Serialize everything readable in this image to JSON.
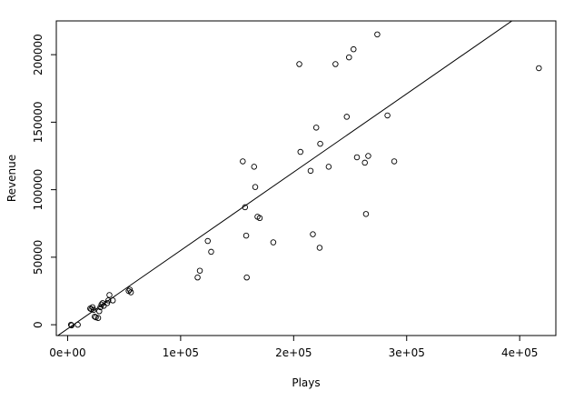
{
  "chart_data": {
    "type": "scatter",
    "title": "",
    "xlabel": "Plays",
    "ylabel": "Revenue",
    "xlim": [
      -10000,
      432000
    ],
    "ylim": [
      -8000,
      225000
    ],
    "x_ticks": [
      0,
      100000,
      200000,
      300000,
      400000
    ],
    "x_tick_labels": [
      "0e+00",
      "1e+05",
      "2e+05",
      "3e+05",
      "4e+05"
    ],
    "y_ticks": [
      0,
      50000,
      100000,
      150000,
      200000
    ],
    "y_tick_labels": [
      "0",
      "50000",
      "100000",
      "150000",
      "200000"
    ],
    "grid": false,
    "colors": {
      "points": "#000000",
      "line": "#000000",
      "background": "#ffffff"
    },
    "regression_line": {
      "slope": 0.58,
      "intercept": -3000
    },
    "points": [
      [
        3000,
        0
      ],
      [
        3500,
        -500
      ],
      [
        9000,
        0
      ],
      [
        20000,
        12000
      ],
      [
        21000,
        11500
      ],
      [
        22000,
        13000
      ],
      [
        23000,
        11000
      ],
      [
        24000,
        6000
      ],
      [
        25000,
        5500
      ],
      [
        27000,
        5000
      ],
      [
        28000,
        10000
      ],
      [
        29000,
        13000
      ],
      [
        30000,
        15000
      ],
      [
        31000,
        16000
      ],
      [
        32000,
        14000
      ],
      [
        35000,
        16000
      ],
      [
        36000,
        18000
      ],
      [
        37000,
        22000
      ],
      [
        40000,
        18000
      ],
      [
        54000,
        25000
      ],
      [
        55000,
        26000
      ],
      [
        56000,
        24000
      ],
      [
        115000,
        35000
      ],
      [
        117000,
        40000
      ],
      [
        124000,
        62000
      ],
      [
        127000,
        54000
      ],
      [
        155000,
        121000
      ],
      [
        157000,
        87000
      ],
      [
        158000,
        66000
      ],
      [
        158500,
        35000
      ],
      [
        165000,
        117000
      ],
      [
        166000,
        102000
      ],
      [
        168000,
        80000
      ],
      [
        170000,
        79000
      ],
      [
        182000,
        61000
      ],
      [
        205000,
        193000
      ],
      [
        206000,
        128000
      ],
      [
        215000,
        114000
      ],
      [
        217000,
        67000
      ],
      [
        220000,
        146000
      ],
      [
        223000,
        57000
      ],
      [
        223500,
        134000
      ],
      [
        231000,
        117000
      ],
      [
        237000,
        193000
      ],
      [
        247000,
        154000
      ],
      [
        249000,
        198000
      ],
      [
        253000,
        204000
      ],
      [
        256000,
        124000
      ],
      [
        263000,
        120000
      ],
      [
        264000,
        82000
      ],
      [
        266000,
        125000
      ],
      [
        274000,
        215000
      ],
      [
        283000,
        155000
      ],
      [
        289000,
        121000
      ],
      [
        417000,
        190000
      ]
    ]
  }
}
